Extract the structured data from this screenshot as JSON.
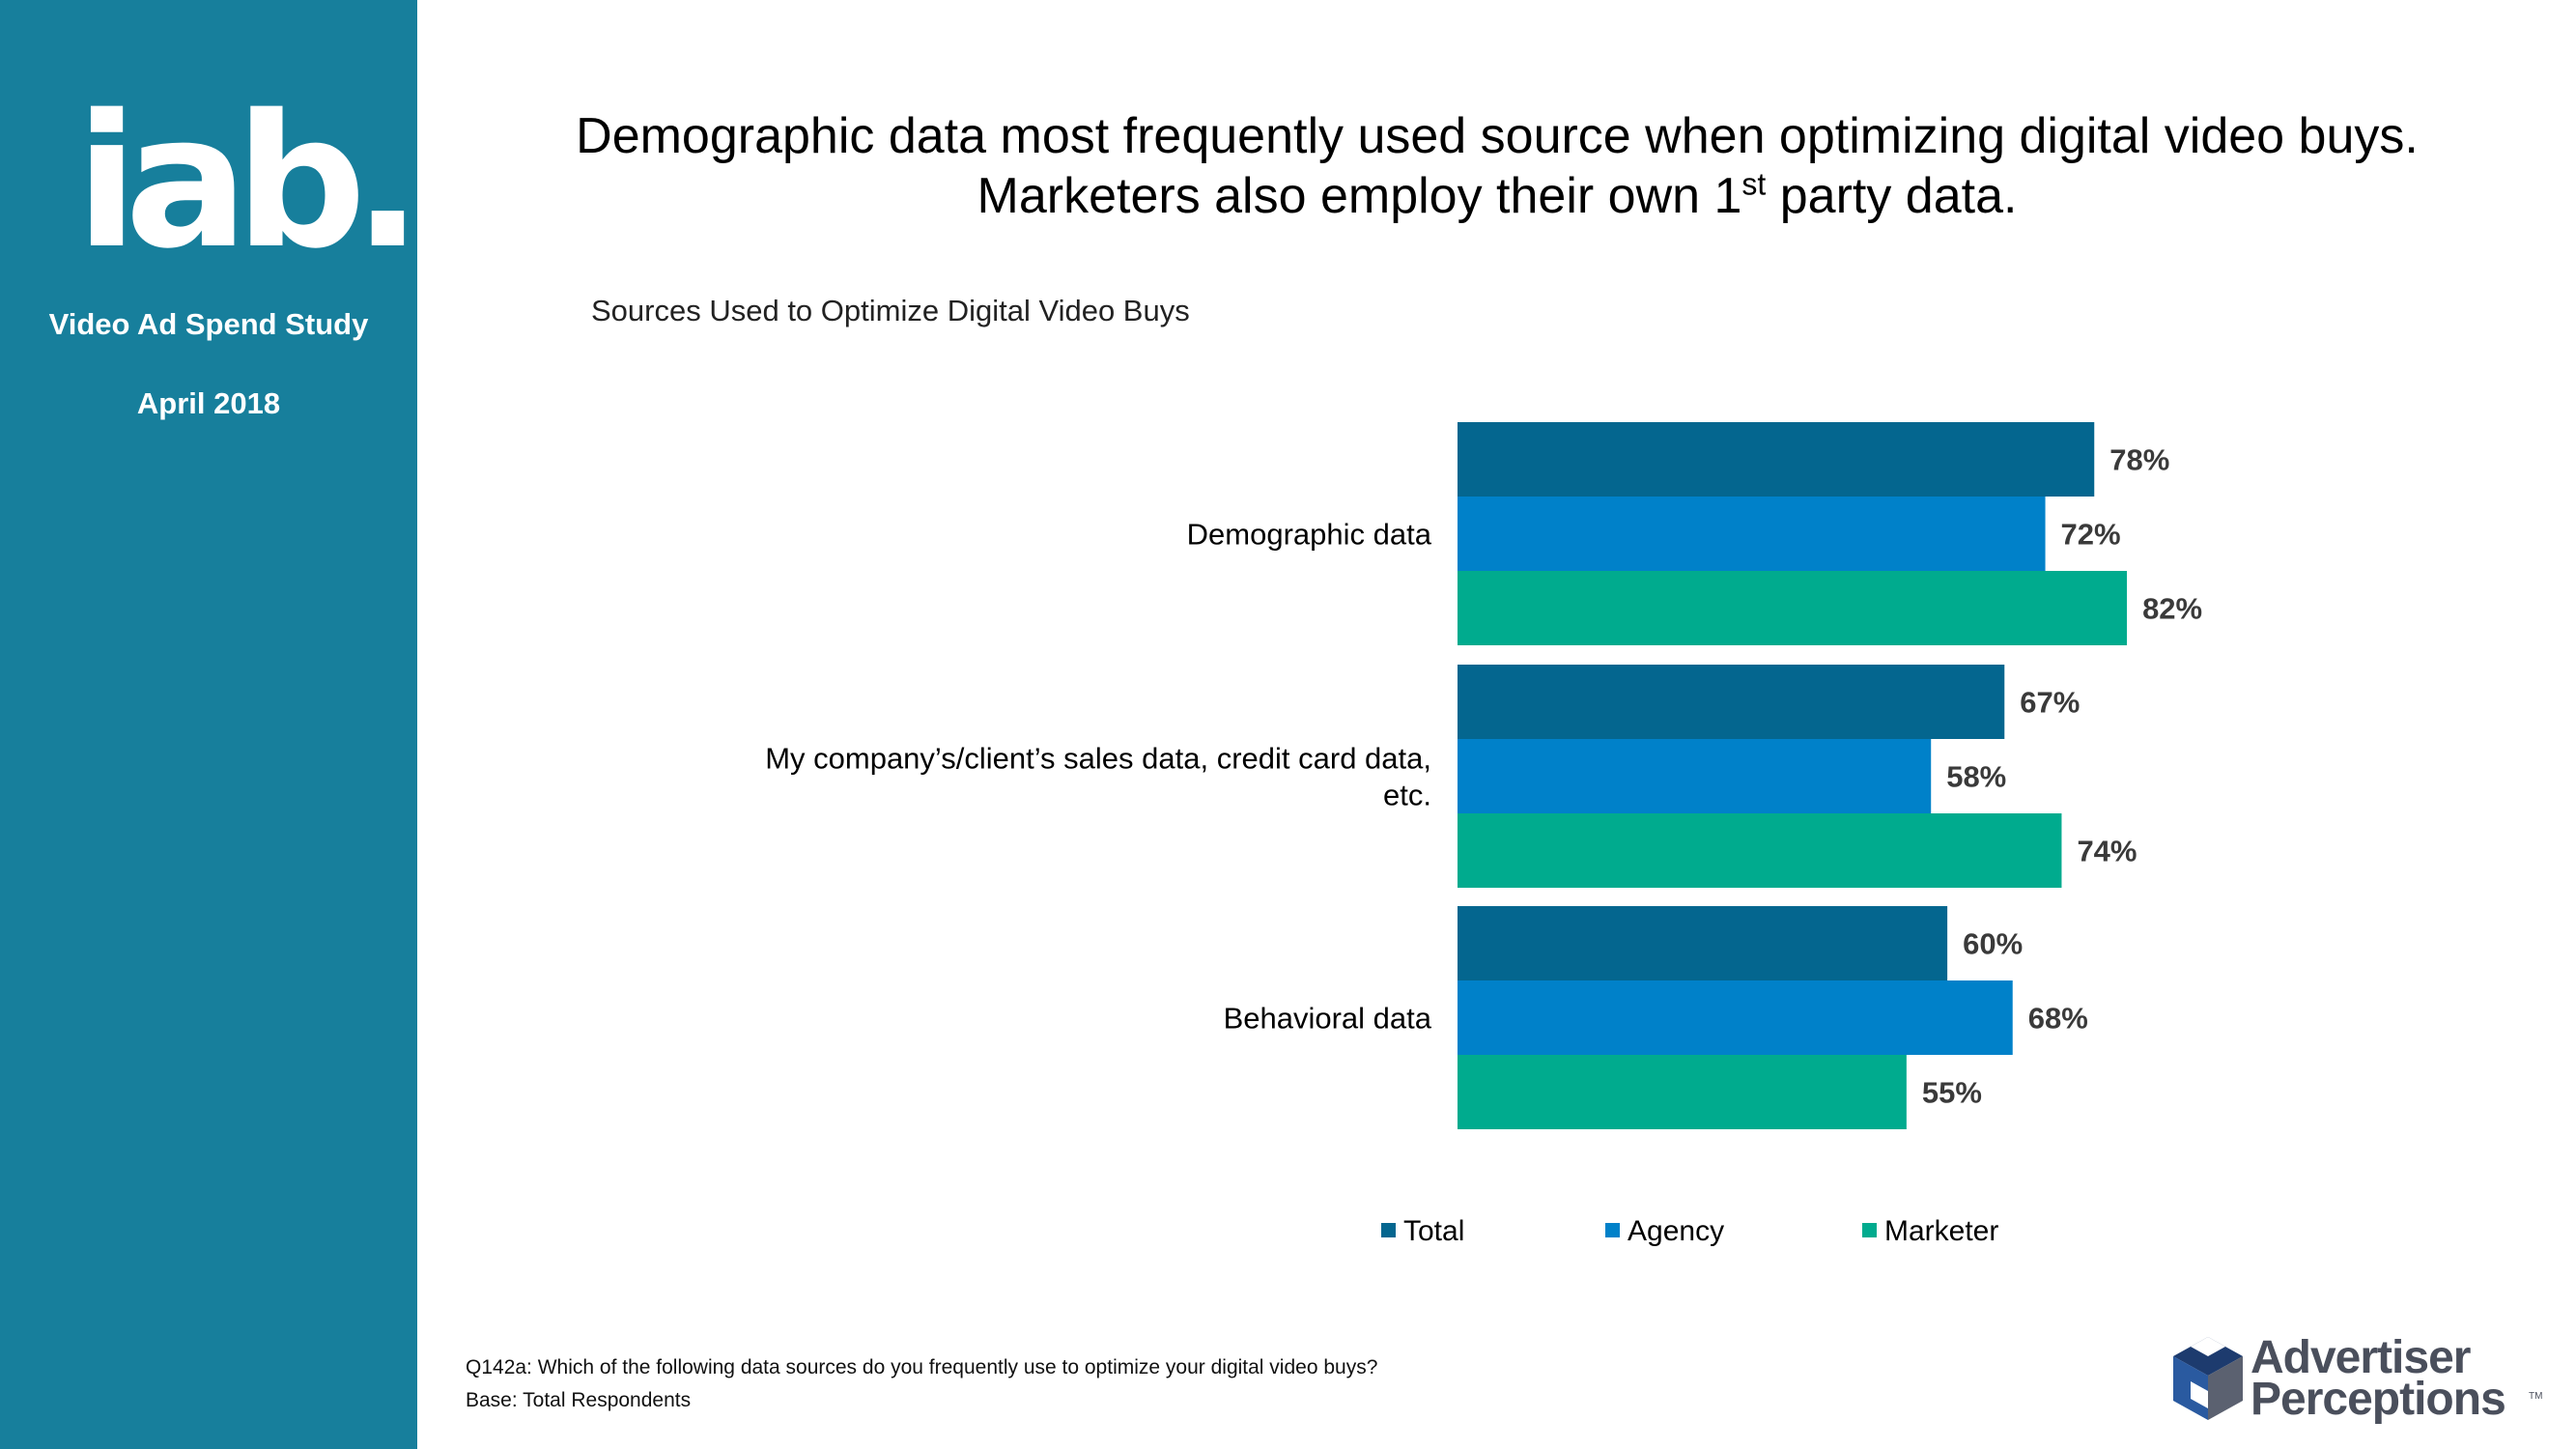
{
  "sidebar": {
    "logo_text": "iab.",
    "study_name": "Video Ad Spend Study",
    "study_date": "April 2018"
  },
  "headline": {
    "line1": "Demographic data most frequently used source when optimizing digital video buys.",
    "line2_pre": "Marketers also employ their own 1",
    "line2_sup": "st",
    "line2_post": " party data."
  },
  "chart_title": "Sources Used to Optimize Digital Video Buys",
  "chart_data": {
    "type": "bar",
    "orientation": "horizontal",
    "title": "Sources Used to Optimize Digital Video Buys",
    "categories": [
      "Demographic data",
      "My company’s/client’s sales data, credit card data, etc.",
      "Behavioral data"
    ],
    "category_label_lines": [
      [
        "Demographic data"
      ],
      [
        "My company’s/client’s sales data, credit card data,",
        "etc."
      ],
      [
        "Behavioral data"
      ]
    ],
    "series": [
      {
        "name": "Total",
        "color": "#04668f",
        "values": [
          78,
          67,
          60
        ],
        "labels": [
          "78%",
          "67%",
          "60%"
        ]
      },
      {
        "name": "Agency",
        "color": "#0081c9",
        "values": [
          72,
          58,
          68
        ],
        "labels": [
          "72%",
          "58%",
          "68%"
        ]
      },
      {
        "name": "Marketer",
        "color": "#00ab8e",
        "values": [
          82,
          74,
          55
        ],
        "labels": [
          "82%",
          "74%",
          "55%"
        ]
      }
    ],
    "xlim": [
      0,
      100
    ],
    "unit": "%",
    "legend_position": "bottom",
    "grid": false,
    "xlabel": "",
    "ylabel": ""
  },
  "footnote": {
    "question": "Q142a: Which of the following data sources do you frequently use to optimize your digital video buys?",
    "base": "Base: Total Respondents"
  },
  "brand": {
    "line1": "Advertiser",
    "line2": "Perceptions",
    "tm": "TM"
  },
  "colors": {
    "sidebar": "#177f9c",
    "total": "#04668f",
    "agency": "#0081c9",
    "marketer": "#00ab8e"
  }
}
